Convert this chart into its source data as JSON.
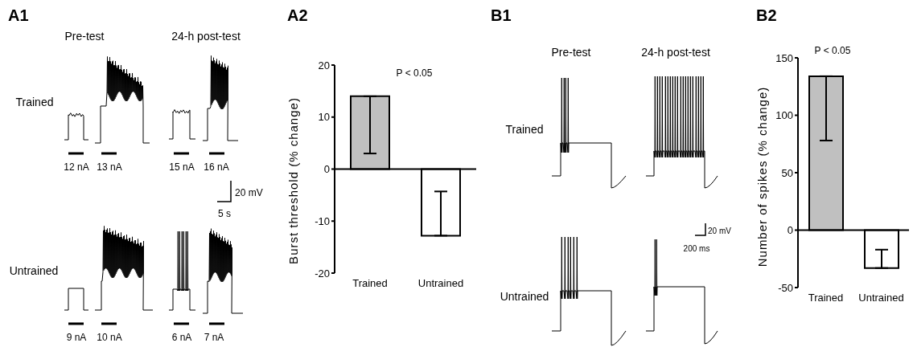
{
  "chart_data": [
    {
      "type": "other",
      "title": "A1",
      "annotations": [
        "Pre-test",
        "24-h post-test",
        "Trained",
        "Untrained",
        "12 nA",
        "13 nA",
        "15 nA",
        "16 nA",
        "20 mV",
        "5 s",
        "9 nA",
        "10 nA",
        "6 nA",
        "7 nA"
      ]
    },
    {
      "type": "bar",
      "title": "A2",
      "ylabel": "Burst threshold (% change)",
      "categories": [
        "Trained",
        "Untrained"
      ],
      "values": [
        14,
        -12.8
      ],
      "errors": [
        [
          3,
          14
        ],
        [
          -12.8,
          -4.3
        ]
      ],
      "colors": [
        "#c0c0c0",
        "#ffffff"
      ],
      "ylim": [
        -20,
        20
      ],
      "yticks": [
        -20,
        -10,
        0,
        10,
        20
      ],
      "annotations": [
        "P < 0.05"
      ]
    },
    {
      "type": "other",
      "title": "B1",
      "annotations": [
        "Pre-test",
        "24-h post-test",
        "Trained",
        "Untrained",
        "20 mV",
        "200 ms"
      ]
    },
    {
      "type": "bar",
      "title": "B2",
      "ylabel": "Number of spikes (% change)",
      "categories": [
        "Trained",
        "Untrained"
      ],
      "values": [
        134,
        -33
      ],
      "errors": [
        [
          78,
          134
        ],
        [
          -33,
          -17
        ]
      ],
      "colors": [
        "#c0c0c0",
        "#ffffff"
      ],
      "ylim": [
        -50,
        150
      ],
      "yticks": [
        -50,
        0,
        50,
        100,
        150
      ],
      "annotations": [
        "P < 0.05"
      ]
    }
  ]
}
